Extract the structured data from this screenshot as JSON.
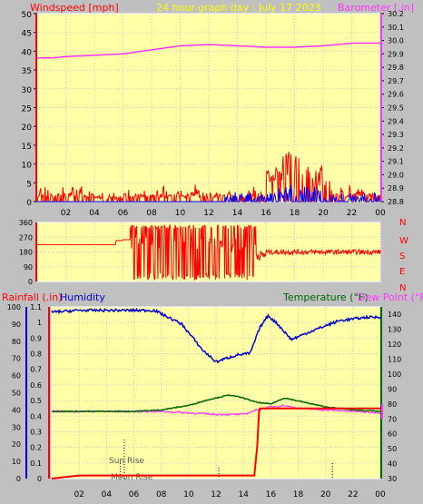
{
  "colors": {
    "page_bg": "#c0c0c0",
    "plot_bg": "#ffffa8",
    "frame": "#ffffff",
    "wind": "#ff0000",
    "gust": "#0000ff",
    "barometer": "#ff33ff",
    "direction": "#ff0000",
    "rain": "#ff0000",
    "humidity": "#0000cc",
    "temperature": "#006600",
    "dew_point": "#ff33ff",
    "title": "#ffff00",
    "grid": "#c8c8c8"
  },
  "header": {
    "wind_label": "Windspeed [mph]",
    "title": "24 hour graph day : July 17 2023",
    "baro_label": "Barometer [.in]"
  },
  "lower_header": {
    "rain_label": "Rainfall (.in)",
    "humidity_label": "Humidity",
    "temp_label": "Temperature (°F)",
    "dew_label": "Dew Point (°F)"
  },
  "annotations": {
    "sunrise": "Sun Rise",
    "moonrise": "Moon Rise"
  },
  "compass": [
    "N",
    "W",
    "S",
    "E",
    "N"
  ],
  "chart_data": [
    {
      "type": "line",
      "name": "wind-and-barometer",
      "x_ticks": [
        "02",
        "04",
        "06",
        "08",
        "10",
        "12",
        "14",
        "16",
        "18",
        "20",
        "22",
        "00"
      ],
      "x_range": [
        0,
        24
      ],
      "y_left": {
        "label": "Windspeed [mph]",
        "range": [
          0,
          50
        ],
        "ticks": [
          0,
          5,
          10,
          15,
          20,
          25,
          30,
          35,
          40,
          45,
          50
        ]
      },
      "y_right": {
        "label": "Barometer [.in]",
        "range": [
          28.8,
          30.2
        ],
        "ticks": [
          28.8,
          28.9,
          29.0,
          29.1,
          29.2,
          29.3,
          29.4,
          29.5,
          29.6,
          29.7,
          29.8,
          29.9,
          30.0,
          30.1,
          30.2
        ]
      },
      "wind_peak": {
        "x": [
          16.5,
          17.0,
          17.5,
          18.0,
          18.5,
          19.0,
          19.5
        ],
        "y": [
          7,
          9,
          11,
          12,
          10,
          8,
          6
        ]
      },
      "barometer": {
        "x": [
          0,
          1,
          2,
          4,
          6,
          8,
          10,
          12,
          14,
          16,
          18,
          20,
          22,
          24
        ],
        "y": [
          29.87,
          29.87,
          29.88,
          29.89,
          29.9,
          29.93,
          29.96,
          29.97,
          29.96,
          29.95,
          29.95,
          29.96,
          29.98,
          29.98
        ]
      }
    },
    {
      "type": "line",
      "name": "wind-direction",
      "y_range": [
        0,
        360
      ],
      "y_ticks": [
        0,
        90,
        180,
        270,
        360
      ],
      "x_range": [
        0,
        24
      ]
    },
    {
      "type": "line",
      "name": "rain-humidity-temperature",
      "x_range": [
        0,
        24
      ],
      "x_ticks": [
        "02",
        "04",
        "06",
        "08",
        "10",
        "12",
        "14",
        "16",
        "18",
        "20",
        "22",
        "00"
      ],
      "y_left": {
        "label": "Rainfall (.in)",
        "range": [
          0,
          1.1
        ],
        "ticks": [
          0,
          0.1,
          0.2,
          0.3,
          0.4,
          0.5,
          0.6,
          0.7,
          0.8,
          0.9,
          1,
          1.1
        ]
      },
      "y_humidity": {
        "label": "Humidity",
        "range": [
          0,
          100
        ],
        "ticks": [
          0,
          10,
          20,
          30,
          40,
          50,
          60,
          70,
          80,
          90,
          100
        ]
      },
      "y_right": {
        "label": "Temperature (°F)",
        "range": [
          30,
          145
        ],
        "ticks": [
          30,
          40,
          50,
          60,
          70,
          80,
          90,
          100,
          110,
          120,
          130,
          140
        ]
      },
      "rain": {
        "x": [
          0,
          2,
          14.8,
          15.0,
          15.15,
          24
        ],
        "y": [
          0,
          0.02,
          0.02,
          0.2,
          0.45,
          0.45
        ]
      },
      "humidity": {
        "x": [
          0,
          2,
          4,
          7.5,
          9.5,
          11,
          12,
          13.5,
          14.5,
          15.2,
          15.8,
          16.5,
          17.5,
          19,
          21,
          23,
          24
        ],
        "y": [
          97,
          98,
          98,
          98,
          90,
          75,
          68,
          72,
          73,
          88,
          95,
          90,
          81,
          86,
          92,
          94,
          94
        ]
      },
      "temperature": {
        "x": [
          0,
          3,
          6,
          8,
          10,
          11.5,
          13,
          14,
          15,
          16,
          17,
          18,
          20,
          22,
          24
        ],
        "y": [
          75,
          75,
          75,
          76,
          79,
          83,
          86,
          84,
          81,
          80,
          84,
          82,
          78,
          76,
          75
        ]
      },
      "dew_point": {
        "x": [
          0,
          4,
          8,
          10,
          12,
          14,
          15,
          16,
          17,
          18,
          20,
          22,
          24
        ],
        "y": [
          75,
          75,
          75,
          74,
          73,
          73,
          76,
          78,
          79,
          77,
          76,
          75,
          74
        ]
      }
    }
  ]
}
